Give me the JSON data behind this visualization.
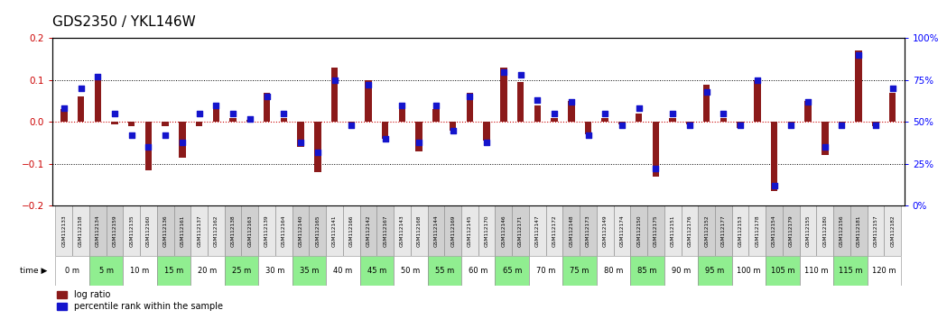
{
  "title": "GDS2350 / YKL146W",
  "samples": [
    "GSM112133",
    "GSM112158",
    "GSM112134",
    "GSM112159",
    "GSM112135",
    "GSM112160",
    "GSM112136",
    "GSM112161",
    "GSM112137",
    "GSM112162",
    "GSM112138",
    "GSM112163",
    "GSM112139",
    "GSM112164",
    "GSM112140",
    "GSM112165",
    "GSM112141",
    "GSM112166",
    "GSM112142",
    "GSM112167",
    "GSM112143",
    "GSM112168",
    "GSM112144",
    "GSM112169",
    "GSM112145",
    "GSM112170",
    "GSM112146",
    "GSM112171",
    "GSM112147",
    "GSM112172",
    "GSM112148",
    "GSM112173",
    "GSM112149",
    "GSM112174",
    "GSM112150",
    "GSM112175",
    "GSM112151",
    "GSM112176",
    "GSM112152",
    "GSM112177",
    "GSM112153",
    "GSM112178",
    "GSM112154",
    "GSM112179",
    "GSM112155",
    "GSM112180",
    "GSM112156",
    "GSM112181",
    "GSM112157",
    "GSM112182"
  ],
  "time_labels": [
    "0 m",
    "5 m",
    "10 m",
    "15 m",
    "20 m",
    "25 m",
    "30 m",
    "35 m",
    "40 m",
    "45 m",
    "50 m",
    "55 m",
    "60 m",
    "65 m",
    "70 m",
    "75 m",
    "80 m",
    "85 m",
    "90 m",
    "95 m",
    "100 m",
    "105 m",
    "110 m",
    "115 m",
    "120 m"
  ],
  "log_ratios": [
    0.03,
    0.06,
    0.11,
    -0.005,
    -0.01,
    -0.115,
    -0.01,
    -0.085,
    -0.01,
    0.03,
    0.01,
    0.005,
    0.07,
    0.01,
    -0.06,
    -0.12,
    0.13,
    -0.005,
    0.1,
    -0.04,
    0.04,
    -0.07,
    0.03,
    -0.02,
    0.07,
    -0.045,
    0.13,
    0.095,
    0.04,
    0.01,
    0.05,
    -0.03,
    0.01,
    -0.005,
    0.02,
    -0.13,
    0.01,
    -0.005,
    0.09,
    0.01,
    -0.015,
    0.1,
    -0.165,
    -0.01,
    0.05,
    -0.08,
    -0.01,
    0.17,
    -0.01,
    0.07
  ],
  "percentile_ranks": [
    58,
    70,
    77,
    55,
    42,
    35,
    42,
    38,
    55,
    60,
    55,
    52,
    65,
    55,
    38,
    32,
    75,
    48,
    72,
    40,
    60,
    38,
    60,
    45,
    65,
    38,
    80,
    78,
    63,
    55,
    62,
    42,
    55,
    48,
    58,
    22,
    55,
    48,
    68,
    55,
    48,
    75,
    12,
    48,
    62,
    35,
    48,
    90,
    48,
    70
  ],
  "bar_color": "#8B1A1A",
  "dot_color": "#1414CC",
  "ylim_left": [
    -0.2,
    0.2
  ],
  "ylim_right": [
    0,
    100
  ],
  "yticks_left": [
    -0.2,
    -0.1,
    0.0,
    0.1,
    0.2
  ],
  "yticks_right": [
    0,
    25,
    50,
    75,
    100
  ],
  "ytick_labels_right": [
    "0%",
    "25%",
    "50%",
    "75%",
    "100%"
  ],
  "hlines": [
    0.1,
    -0.1
  ],
  "zero_line_color": "#CC0000",
  "bg_color": "#FFFFFF",
  "gsm_bg_colors": [
    "#E8E8E8",
    "#D0D0D0"
  ],
  "time_bg_colors": [
    "#FFFFFF",
    "#90EE90"
  ],
  "title_fontsize": 11,
  "tick_fontsize": 7.5,
  "bar_width": 0.4
}
